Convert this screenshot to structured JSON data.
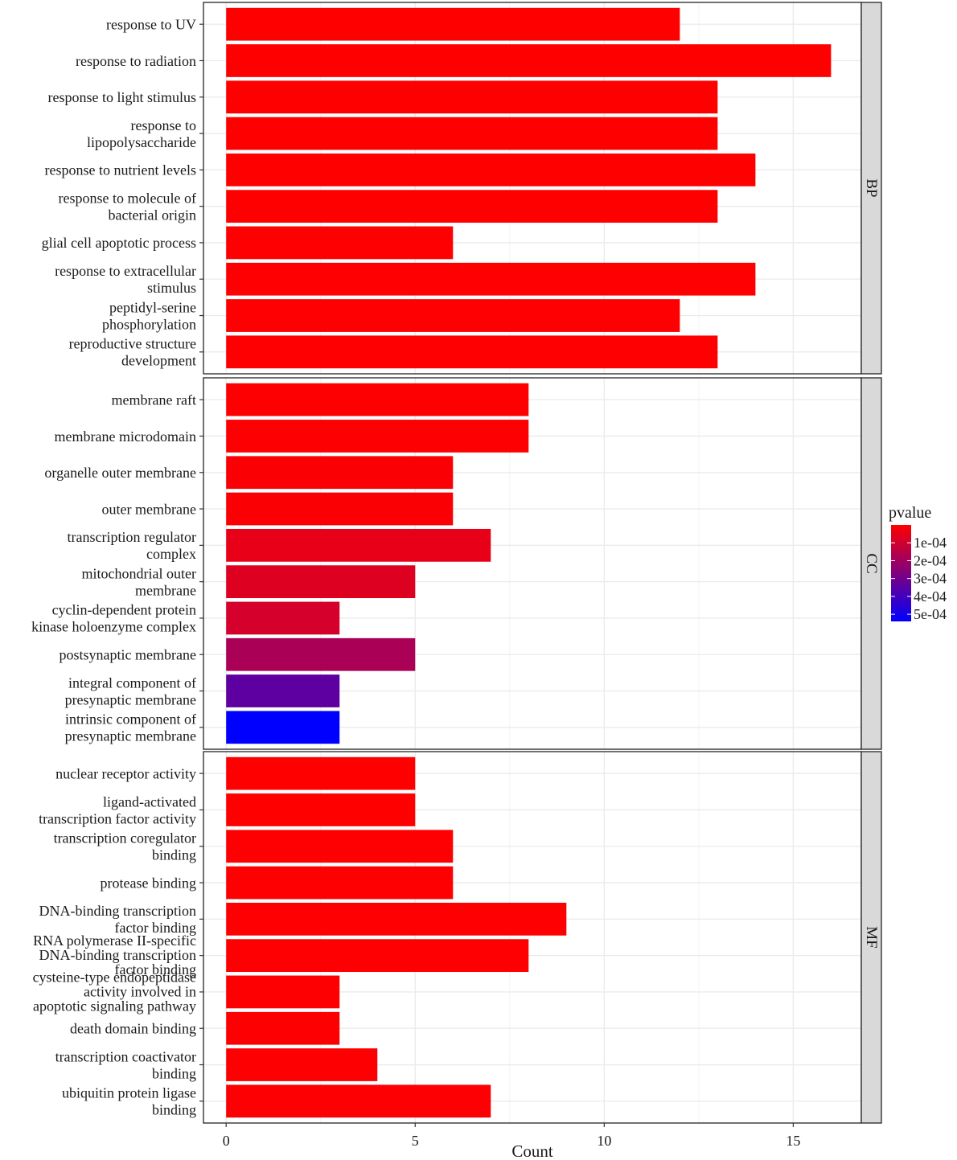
{
  "chart_data": {
    "type": "bar",
    "orientation": "horizontal",
    "xlabel": "Count",
    "xlim": [
      -0.6,
      16.8
    ],
    "x_ticks": [
      0,
      5,
      10,
      15
    ],
    "colors": {
      "low_pvalue": "#ff0000",
      "high_pvalue": "#0000ff"
    },
    "legend": {
      "title": "pvalue",
      "position": "right",
      "range": [
        0.0,
        0.00054
      ],
      "labels": [
        "1e-04",
        "2e-04",
        "3e-04",
        "4e-04",
        "5e-04"
      ],
      "values": [
        0.0001,
        0.0002,
        0.0003,
        0.0004,
        0.0005
      ]
    },
    "panels": [
      {
        "name": "BP",
        "categories": [
          [
            "response to UV"
          ],
          [
            "response to radiation"
          ],
          [
            "response to light stimulus"
          ],
          [
            "response to",
            "lipopolysaccharide"
          ],
          [
            "response to nutrient levels"
          ],
          [
            "response to molecule of",
            "bacterial origin"
          ],
          [
            "glial cell apoptotic process"
          ],
          [
            "response to extracellular",
            "stimulus"
          ],
          [
            "peptidyl-serine",
            "phosphorylation"
          ],
          [
            "reproductive structure",
            "development"
          ]
        ],
        "values": [
          12,
          16,
          13,
          13,
          14,
          13,
          6,
          14,
          12,
          13
        ],
        "pvalues": [
          1e-06,
          1e-06,
          1e-06,
          1e-06,
          1e-06,
          1e-06,
          2e-06,
          2e-06,
          2e-06,
          3e-06
        ]
      },
      {
        "name": "CC",
        "categories": [
          [
            "membrane raft"
          ],
          [
            "membrane microdomain"
          ],
          [
            "organelle outer membrane"
          ],
          [
            "outer membrane"
          ],
          [
            "transcription regulator",
            "complex"
          ],
          [
            "mitochondrial outer",
            "membrane"
          ],
          [
            "cyclin-dependent protein",
            "kinase holoenzyme complex"
          ],
          [
            "postsynaptic membrane"
          ],
          [
            "integral component of",
            "presynaptic membrane"
          ],
          [
            "intrinsic component of",
            "presynaptic membrane"
          ]
        ],
        "values": [
          8,
          8,
          6,
          6,
          7,
          5,
          3,
          5,
          3,
          3
        ],
        "pvalues": [
          5e-06,
          5e-06,
          1e-05,
          1e-05,
          5e-05,
          7e-05,
          9e-05,
          0.00018,
          0.00034,
          0.00054
        ]
      },
      {
        "name": "MF",
        "categories": [
          [
            "nuclear receptor activity"
          ],
          [
            "ligand-activated",
            "transcription factor activity"
          ],
          [
            "transcription coregulator",
            "binding"
          ],
          [
            "protease binding"
          ],
          [
            "DNA-binding transcription",
            "factor binding"
          ],
          [
            "RNA polymerase II-specific",
            "DNA-binding transcription",
            "factor binding"
          ],
          [
            "cysteine-type endopeptidase",
            "activity involved in",
            "apoptotic signaling pathway"
          ],
          [
            "death domain binding"
          ],
          [
            "transcription coactivator",
            "binding"
          ],
          [
            "ubiquitin protein ligase",
            "binding"
          ]
        ],
        "values": [
          5,
          5,
          6,
          6,
          9,
          8,
          3,
          3,
          4,
          7
        ],
        "pvalues": [
          1e-06,
          1e-06,
          2e-06,
          2e-06,
          3e-06,
          3e-06,
          4e-06,
          4e-06,
          5e-06,
          6e-06
        ]
      }
    ]
  }
}
